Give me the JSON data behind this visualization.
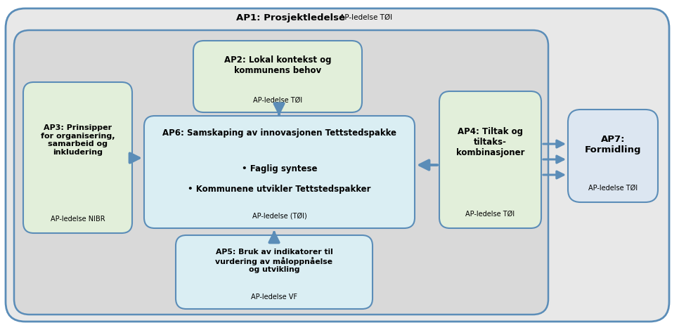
{
  "bg_outer_color": "#e8e8e8",
  "bg_outer_border": "#5b8db8",
  "bg_inner_color": "#d9d9d9",
  "bg_inner_border": "#5b8db8",
  "ap1_title_bold": "AP1: Prosjektledelse",
  "ap1_title_normal": " AP-ledelse TØI",
  "ap2_title": "AP2: Lokal kontekst og\nkommunens behov",
  "ap2_subtitle": "AP-ledelse TØI",
  "ap2_color": "#e2efda",
  "ap2_border": "#5b8db8",
  "ap3_title": "AP3: Prinsipper\nfor organisering,\nsamarbeid og\ninkludering",
  "ap3_subtitle": "AP-ledelse NIBR",
  "ap3_color": "#e2efda",
  "ap3_border": "#5b8db8",
  "ap4_title": "AP4: Tiltak og\ntiltaks-\nkombinasjoner",
  "ap4_subtitle": "AP-ledelse TØI",
  "ap4_color": "#e2efda",
  "ap4_border": "#5b8db8",
  "ap5_title": "AP5: Bruk av indikatorer til\nvurdering av måloppnåelse\nog utvikling",
  "ap5_subtitle": "AP-ledelse VF",
  "ap5_color": "#daeef3",
  "ap5_border": "#5b8db8",
  "ap6_title": "AP6: Samskaping av innovasjonen Tettstedspakke",
  "ap6_bullet1": "• Faglig syntese",
  "ap6_bullet2": "• Kommunene utvikler Tettstedspakker",
  "ap6_subtitle": "AP-ledelse (TØI)",
  "ap6_color": "#daeef3",
  "ap6_border": "#5b8db8",
  "ap7_title": "AP7:\nFormidling",
  "ap7_subtitle": "AP-ledelse TØI",
  "ap7_color": "#dce6f1",
  "ap7_border": "#5b8db8",
  "arrow_color": "#5b8db8",
  "text_color": "#000000",
  "fig_width": 9.66,
  "fig_height": 4.7,
  "dpi": 100
}
